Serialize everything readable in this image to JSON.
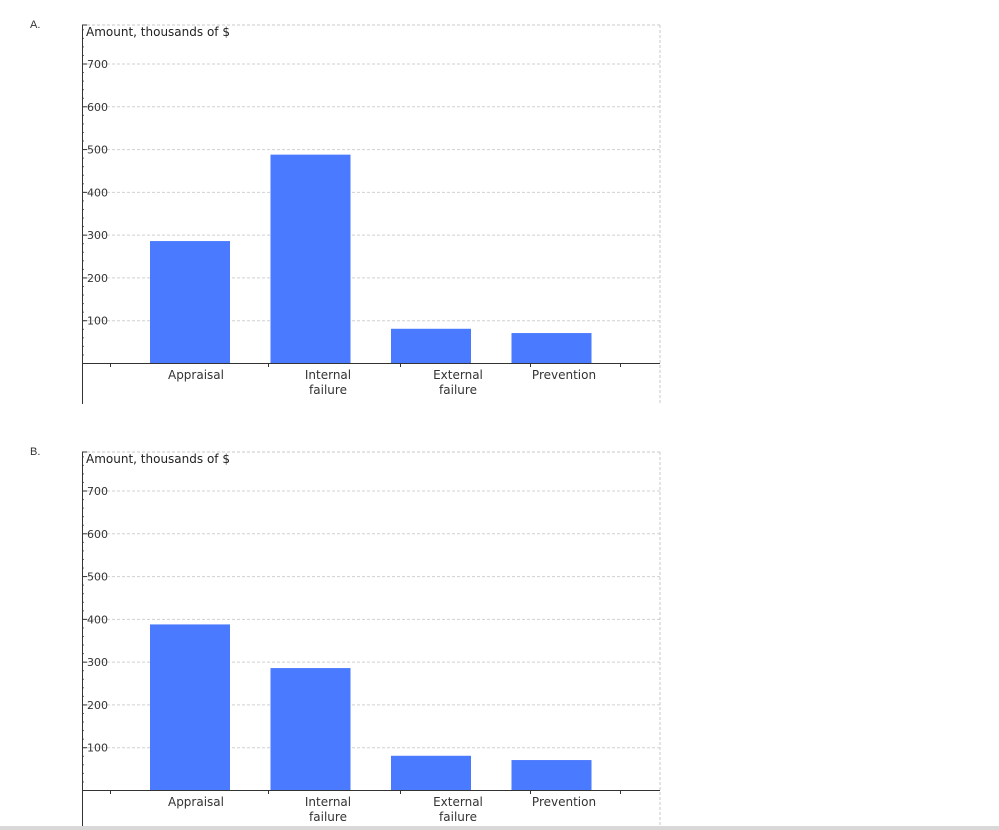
{
  "chart_data": [
    {
      "option": "A.",
      "type": "bar",
      "title": "Amount, thousands of $",
      "categories": [
        [
          "Appraisal"
        ],
        [
          "Internal",
          "failure"
        ],
        [
          "External",
          "failure"
        ],
        [
          "Prevention"
        ]
      ],
      "values": [
        285,
        487,
        80,
        70
      ],
      "yticks": [
        100,
        200,
        300,
        400,
        500,
        600,
        700
      ],
      "ylim": [
        0,
        790
      ],
      "grid": true,
      "bar_color": "#4a7aff"
    },
    {
      "option": "B.",
      "type": "bar",
      "title": "Amount, thousands of $",
      "categories": [
        [
          "Appraisal"
        ],
        [
          "Internal",
          "failure"
        ],
        [
          "External",
          "failure"
        ],
        [
          "Prevention"
        ]
      ],
      "values": [
        387,
        285,
        80,
        70
      ],
      "yticks": [
        100,
        200,
        300,
        400,
        500,
        600,
        700
      ],
      "ylim": [
        0,
        790
      ],
      "grid": true,
      "bar_color": "#4a7aff"
    }
  ]
}
